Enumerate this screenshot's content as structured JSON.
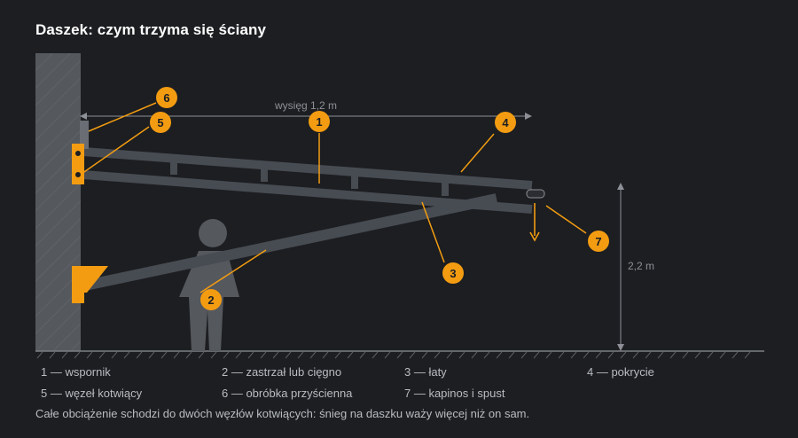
{
  "title": "Daszek: czym trzyma się ściany",
  "dimensions": {
    "reach_label": "wysięg 1,2 m",
    "height_label": "2,2 m"
  },
  "markers": [
    "1",
    "2",
    "3",
    "4",
    "5",
    "6",
    "7"
  ],
  "legend": [
    {
      "num": "1",
      "text": "1 — wspornik"
    },
    {
      "num": "2",
      "text": "2 — zastrzał lub cięgno"
    },
    {
      "num": "3",
      "text": "3 — łaty"
    },
    {
      "num": "4",
      "text": "4 — pokrycie"
    },
    {
      "num": "5",
      "text": "5 — węzeł kotwiący"
    },
    {
      "num": "6",
      "text": "6 — obróbka przyścienna"
    },
    {
      "num": "7",
      "text": "7 — kapinos i spust"
    }
  ],
  "footnote": "Całe obciążenie schodzi do dwóch węzłów kotwiących: śnieg na daszku waży więcej niż on sam.",
  "colors": {
    "background": "#1c1e21",
    "accent": "#f39c12",
    "structure": "#474b52",
    "wall": "#55585d",
    "dimension": "#8d9096",
    "text": "#b9bcc1"
  }
}
